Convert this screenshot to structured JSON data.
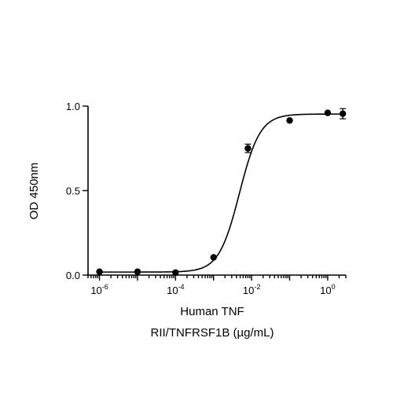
{
  "chart_data": {
    "type": "scatter",
    "xscale": "log10",
    "xlabel_line1": "Human TNF",
    "xlabel_line2": "RII/TNFRSF1B (µg/mL)",
    "ylabel": "OD 450nm",
    "xlim": [
      5e-07,
      3
    ],
    "ylim": [
      0,
      1.0
    ],
    "grid": false,
    "legend": "none",
    "yticks": [
      {
        "value": 0.0,
        "label": "0.0"
      },
      {
        "value": 0.5,
        "label": "0.5"
      },
      {
        "value": 1.0,
        "label": "1.0"
      }
    ],
    "xticks_major": [
      {
        "value": 1e-06,
        "base": "10",
        "exp": "-6"
      },
      {
        "value": 0.0001,
        "base": "10",
        "exp": "-4"
      },
      {
        "value": 0.01,
        "base": "10",
        "exp": "-2"
      },
      {
        "value": 1,
        "base": "10",
        "exp": "0"
      }
    ],
    "series": [
      {
        "points": [
          {
            "x": 1e-06,
            "y": 0.02,
            "err": 0.0
          },
          {
            "x": 1e-05,
            "y": 0.02,
            "err": 0.0
          },
          {
            "x": 0.0001,
            "y": 0.015,
            "err": 0.0
          },
          {
            "x": 0.001,
            "y": 0.105,
            "err": 0.0
          },
          {
            "x": 0.008,
            "y": 0.75,
            "err": 0.025
          },
          {
            "x": 0.1,
            "y": 0.915,
            "err": 0.0
          },
          {
            "x": 1,
            "y": 0.96,
            "err": 0.0
          },
          {
            "x": 2.5,
            "y": 0.955,
            "err": 0.03
          }
        ],
        "fit": {
          "bottom": 0.018,
          "top": 0.953,
          "ec50": 0.0048,
          "hill": 1.6
        }
      }
    ]
  }
}
